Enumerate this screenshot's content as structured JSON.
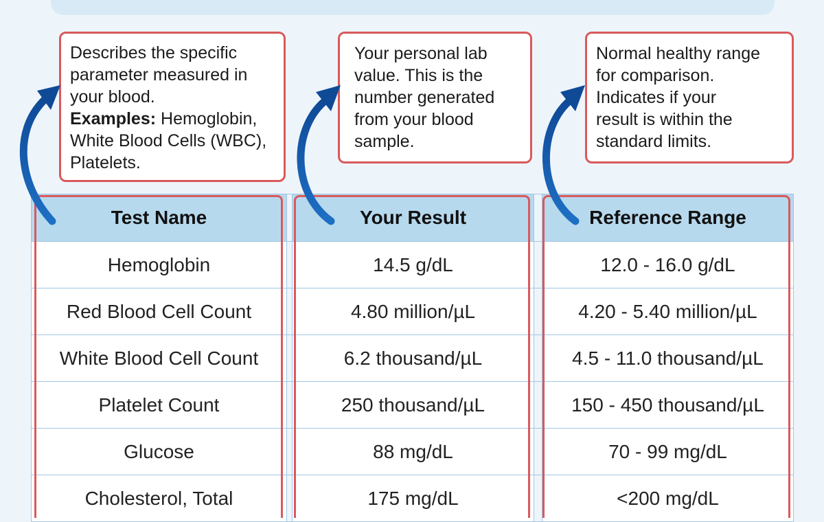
{
  "callouts": {
    "test_name": {
      "lines": [
        "Describes the specific",
        "parameter measured in",
        "your blood."
      ],
      "examples_label": "Examples:",
      "examples_line1": " Hemoglobin,",
      "examples_line2": "White Blood Cells (WBC),",
      "examples_line3": "Platelets."
    },
    "your_result": {
      "lines": [
        "Your personal lab",
        "value. This is the",
        "number generated",
        "from your blood",
        "sample."
      ]
    },
    "reference_range": {
      "lines": [
        "Normal healthy range",
        "for comparison.",
        "Indicates if your",
        "result is within the",
        "standard limits."
      ]
    }
  },
  "table": {
    "headers": [
      "Test Name",
      "Your Result",
      "Reference Range"
    ],
    "rows": [
      [
        "Hemoglobin",
        "14.5 g/dL",
        "12.0 - 16.0 g/dL"
      ],
      [
        "Red Blood Cell Count",
        "4.80 million/µL",
        "4.20 - 5.40 million/µL"
      ],
      [
        "White Blood Cell Count",
        "6.2 thousand/µL",
        "4.5 - 11.0 thousand/µL"
      ],
      [
        "Platelet Count",
        "250 thousand/µL",
        "150 - 450 thousand/µL"
      ],
      [
        "Glucose",
        "88 mg/dL",
        "70 - 99 mg/dL"
      ],
      [
        "Cholesterol, Total",
        "175 mg/dL",
        "<200 mg/dL"
      ]
    ]
  },
  "colors": {
    "background": "#eef5fa",
    "header_fill": "#b7d9ee",
    "outline_red": "#d9595c",
    "arrow_blue": "#1456a8",
    "grid_blue": "#9fc7e3"
  },
  "icons": [
    "curved-arrow-icon"
  ]
}
